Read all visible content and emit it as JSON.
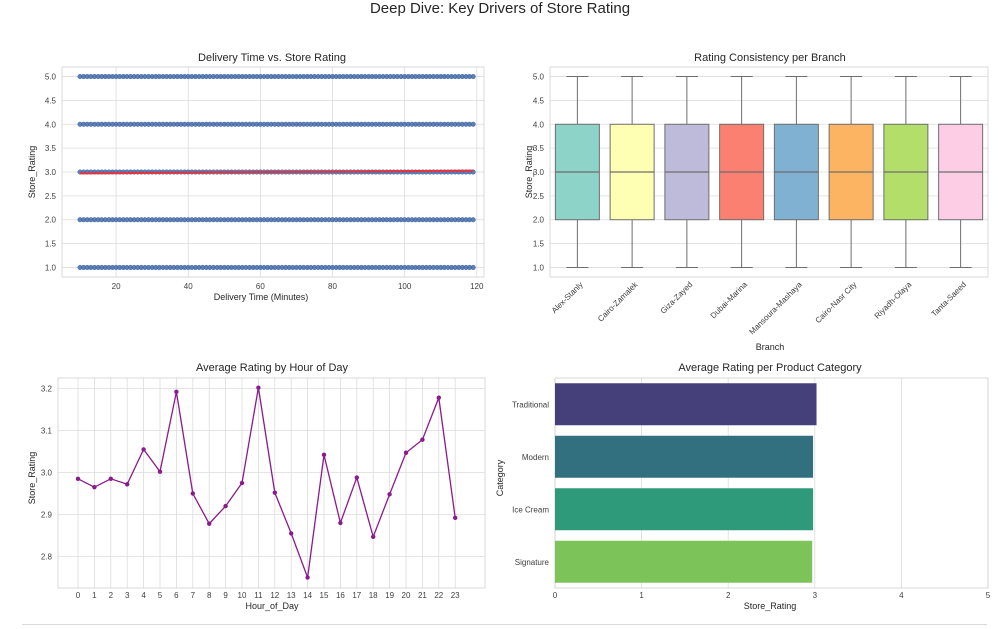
{
  "suptitle": "Deep Dive: Key Drivers of Store Rating",
  "chart_data": [
    {
      "type": "scatter",
      "title": "Delivery Time vs. Store Rating",
      "xlabel": "Delivery Time (Minutes)",
      "ylabel": "Store_Rating",
      "xlim": [
        5,
        122
      ],
      "ylim": [
        0.8,
        5.2
      ],
      "xticks": [
        "20",
        "40",
        "60",
        "80",
        "100",
        "120"
      ],
      "yticks": [
        "1.0",
        "1.5",
        "2.0",
        "2.5",
        "3.0",
        "3.5",
        "4.0",
        "4.5",
        "5.0"
      ],
      "x_range": [
        10,
        119
      ],
      "rating_levels": [
        1,
        2,
        3,
        4,
        5
      ],
      "point_color": "#4c72b0",
      "trend": {
        "x": [
          10,
          119
        ],
        "y": [
          2.97,
          3.03
        ],
        "color": "#e8323c"
      },
      "grid": true
    },
    {
      "type": "box",
      "title": "Rating Consistency per Branch",
      "xlabel": "Branch",
      "ylabel": "Store_Rating",
      "ylim": [
        0.8,
        5.2
      ],
      "yticks": [
        "1.0",
        "1.5",
        "2.0",
        "2.5",
        "3.0",
        "3.5",
        "4.0",
        "4.5",
        "5.0"
      ],
      "categories": [
        "Alex-Stanly",
        "Cairo-Zamalek",
        "Giza-Zayed",
        "Dubai-Marina",
        "Mansoura-Mashaya",
        "Cairo-Nasr City",
        "Riyadh-Olaya",
        "Tanta-Saeed"
      ],
      "boxes": [
        {
          "min": 1,
          "q1": 2,
          "median": 3,
          "q3": 4,
          "max": 5
        },
        {
          "min": 1,
          "q1": 2,
          "median": 3,
          "q3": 4,
          "max": 5
        },
        {
          "min": 1,
          "q1": 2,
          "median": 3,
          "q3": 4,
          "max": 5
        },
        {
          "min": 1,
          "q1": 2,
          "median": 3,
          "q3": 4,
          "max": 5
        },
        {
          "min": 1,
          "q1": 2,
          "median": 3,
          "q3": 4,
          "max": 5
        },
        {
          "min": 1,
          "q1": 2,
          "median": 3,
          "q3": 4,
          "max": 5
        },
        {
          "min": 1,
          "q1": 2,
          "median": 3,
          "q3": 4,
          "max": 5
        },
        {
          "min": 1,
          "q1": 2,
          "median": 3,
          "q3": 4,
          "max": 5
        }
      ],
      "colors": [
        "#8dd3c7",
        "#ffffb3",
        "#bebada",
        "#fb8072",
        "#80b1d3",
        "#fdb462",
        "#b3de69",
        "#fccde5"
      ],
      "grid": true
    },
    {
      "type": "line",
      "title": "Average Rating by Hour of Day",
      "xlabel": "Hour_of_Day",
      "ylabel": "Store_Rating",
      "ylim": [
        2.725,
        3.225
      ],
      "yticks": [
        "2.8",
        "2.9",
        "3.0",
        "3.1",
        "3.2"
      ],
      "x": [
        0,
        1,
        2,
        3,
        4,
        5,
        6,
        7,
        8,
        9,
        10,
        11,
        12,
        13,
        14,
        15,
        16,
        17,
        18,
        19,
        20,
        21,
        22,
        23
      ],
      "values": [
        2.985,
        2.965,
        2.985,
        2.972,
        3.055,
        3.002,
        3.192,
        2.95,
        2.878,
        2.92,
        2.975,
        3.202,
        2.952,
        2.855,
        2.75,
        3.042,
        2.88,
        2.988,
        2.847,
        2.948,
        3.047,
        3.078,
        3.178,
        2.892
      ],
      "color": "#8b1a8b",
      "grid": true
    },
    {
      "type": "bar",
      "orientation": "horizontal",
      "title": "Average Rating per Product Category",
      "xlabel": "Store_Rating",
      "ylabel": "Category",
      "xlim": [
        0,
        5
      ],
      "xticks": [
        "0",
        "1",
        "2",
        "3",
        "4",
        "5"
      ],
      "categories": [
        "Traditional",
        "Modern",
        "Ice Cream",
        "Signature"
      ],
      "values": [
        3.02,
        2.98,
        2.98,
        2.97
      ],
      "colors": [
        "#46407a",
        "#33707f",
        "#2f9a7a",
        "#7cc45a"
      ],
      "grid": true
    }
  ]
}
